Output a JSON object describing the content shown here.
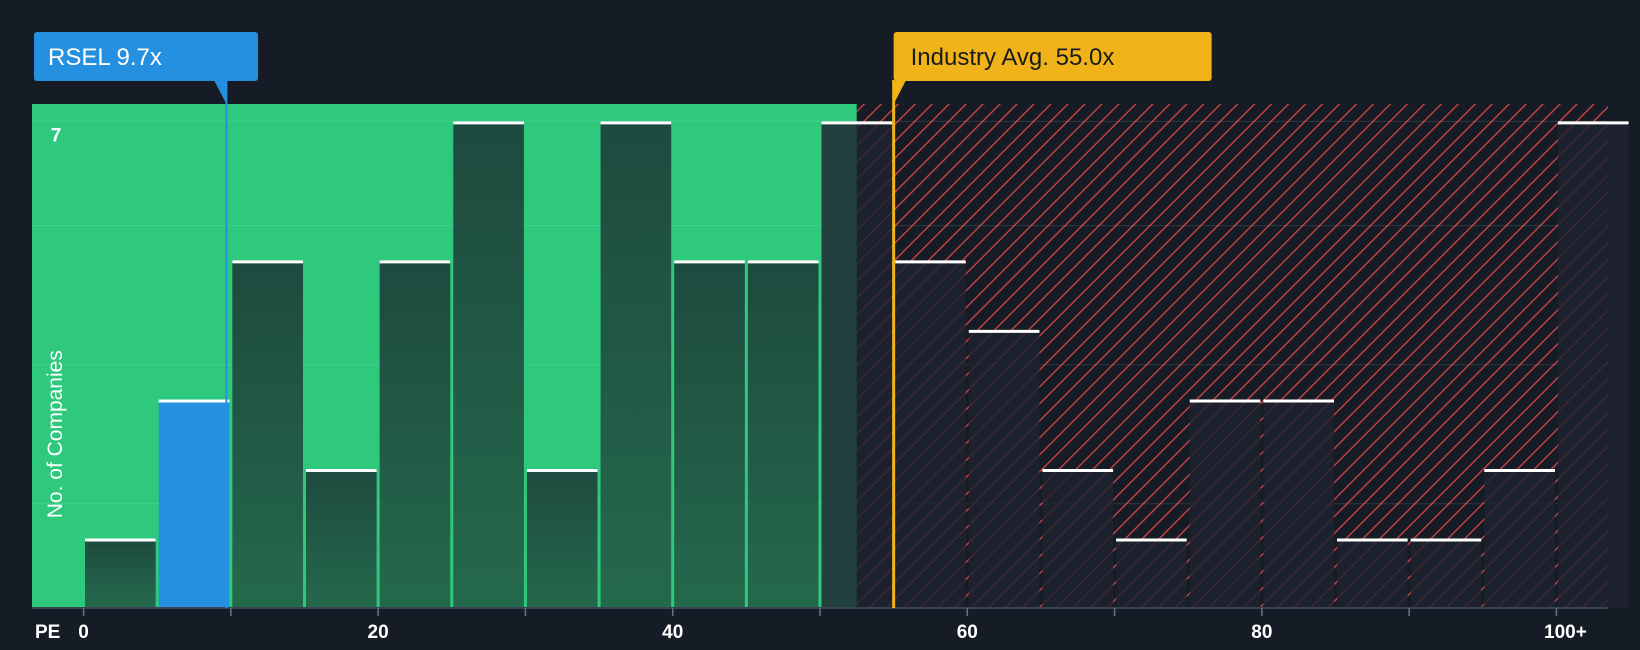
{
  "chart_data": {
    "type": "bar",
    "xlabel": "PE",
    "ylabel": "No. of Companies",
    "x_tick_labels": [
      "0",
      "20",
      "40",
      "60",
      "80",
      "100+"
    ],
    "y_tick_labels": [
      "7"
    ],
    "xlim": [
      -3.5,
      103.5
    ],
    "ylim": [
      0,
      7.25
    ],
    "bin_starts": [
      0,
      5,
      10,
      15,
      20,
      25,
      30,
      35,
      40,
      45,
      50,
      55,
      60,
      65,
      70,
      75,
      80,
      85,
      90,
      95,
      100
    ],
    "values": [
      1,
      3,
      5,
      2,
      5,
      7,
      2,
      7,
      5,
      5,
      7,
      5,
      4,
      2,
      1,
      3,
      3,
      1,
      1,
      2,
      7
    ],
    "highlight_bin_start": 5,
    "company": {
      "label": "RSEL 9.7x",
      "value": 9.7
    },
    "industry_avg": {
      "label": "Industry Avg. 55.0x",
      "value": 55.0
    },
    "shading": {
      "fair_until": 52.5
    },
    "colors": {
      "background": "#161c25",
      "fair_zone": "#2fc97e",
      "fair_bar": "#1f4a40",
      "over_zone_stripe": "#d8434b",
      "over_bar": "#1f2230",
      "company_bar": "#2590e0",
      "company_callout": "#2590e0",
      "industry_line": "#f0b31a",
      "industry_callout": "#f0b31a",
      "bar_cap": "#ffffff"
    }
  }
}
